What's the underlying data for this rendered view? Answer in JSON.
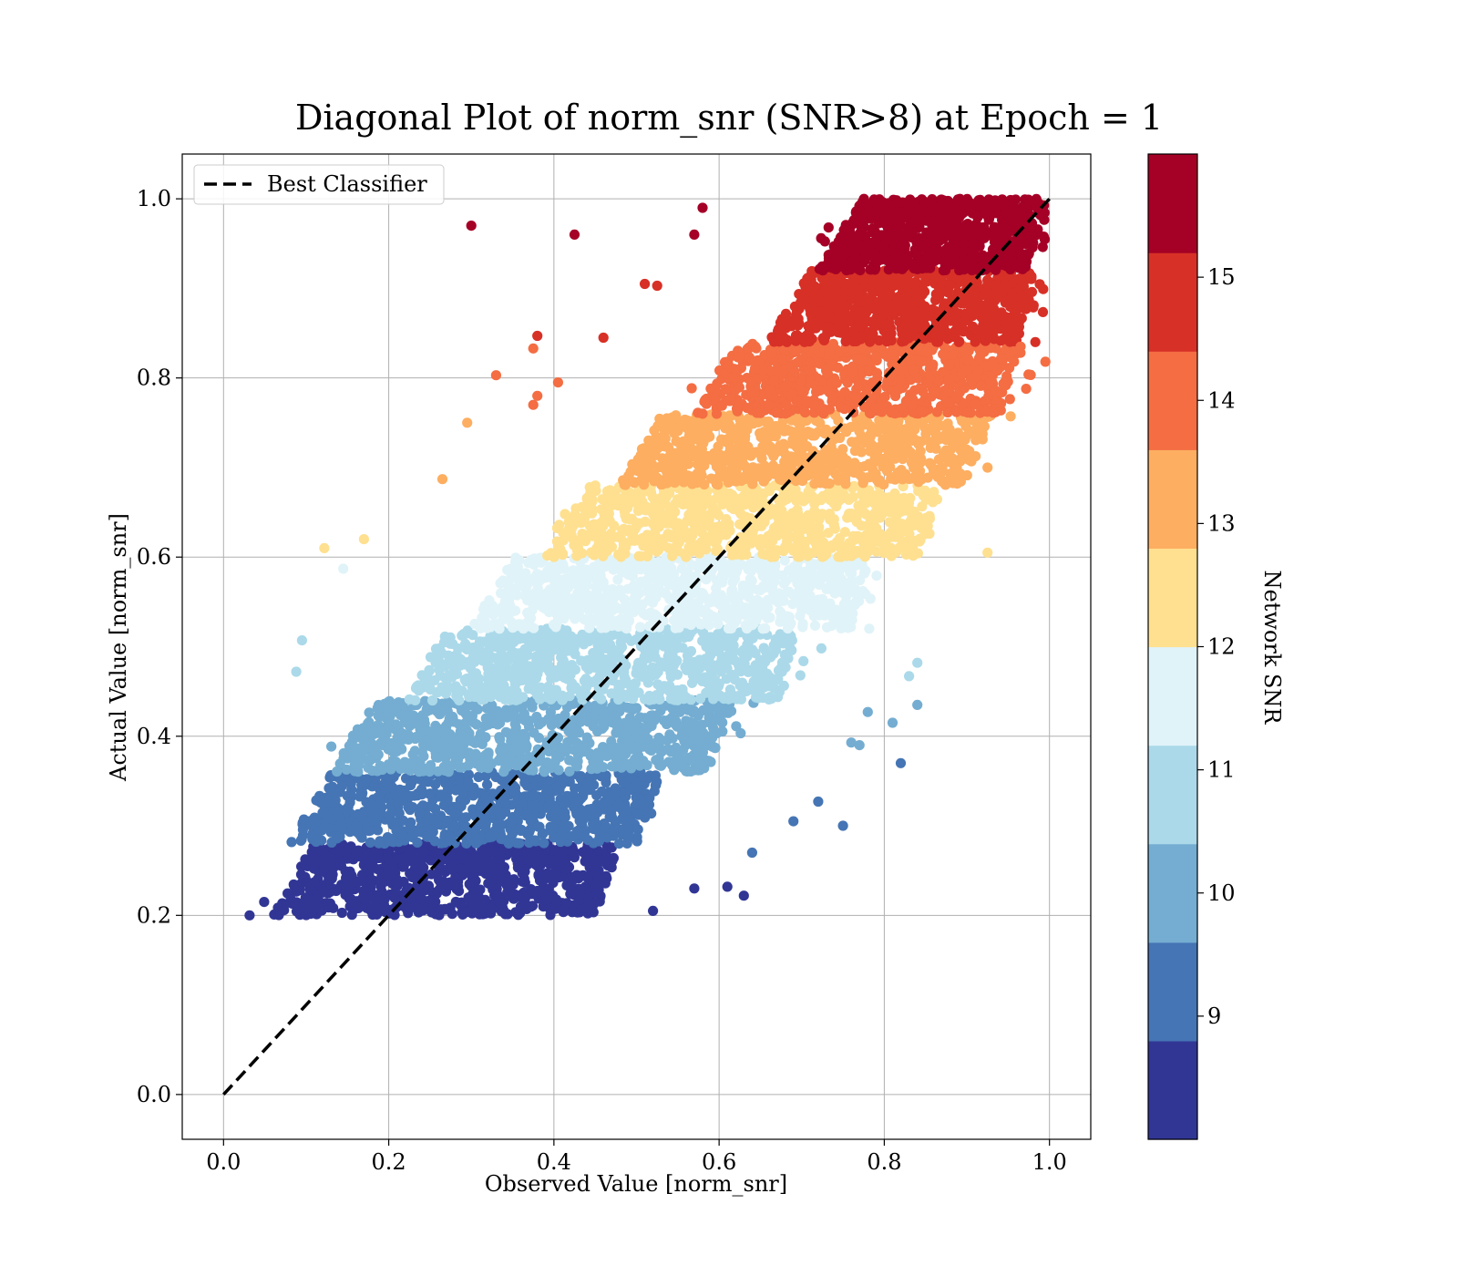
{
  "chart_data": {
    "type": "scatter",
    "title": "Diagonal Plot of norm_snr (SNR>8) at Epoch = 1",
    "xlabel": "Observed Value [norm_snr]",
    "ylabel": "Actual Value [norm_snr]",
    "xlim": [
      -0.05,
      1.05
    ],
    "ylim": [
      -0.05,
      1.05
    ],
    "xticks": [
      "0.0",
      "0.2",
      "0.4",
      "0.6",
      "0.8",
      "1.0"
    ],
    "yticks": [
      "0.0",
      "0.2",
      "0.4",
      "0.6",
      "0.8",
      "1.0"
    ],
    "grid": true,
    "legend": {
      "location": "upper-left",
      "entries": [
        {
          "label": "Best Classifier",
          "style": "dashed",
          "color": "#000000"
        }
      ]
    },
    "reference_line": {
      "name": "Best Classifier",
      "x": [
        0.0,
        1.0
      ],
      "y": [
        0.0,
        1.0
      ]
    },
    "colorbar": {
      "label": "Network SNR",
      "range": [
        8.0,
        16.0
      ],
      "tick_values": [
        9,
        10,
        11,
        12,
        13,
        14,
        15
      ],
      "tick_labels": [
        "9",
        "10",
        "11",
        "12",
        "13",
        "14",
        "15"
      ],
      "colors": [
        "#313695",
        "#4575b4",
        "#74add1",
        "#abd9e9",
        "#e0f3f8",
        "#fee090",
        "#fdae61",
        "#f46d43",
        "#d73027",
        "#a50026"
      ]
    },
    "bands": [
      {
        "snr_range": [
          8.0,
          8.8
        ],
        "y_range": [
          0.2,
          0.28
        ],
        "x_range": [
          0.06,
          0.45
        ],
        "color": "#313695"
      },
      {
        "snr_range": [
          8.8,
          9.6
        ],
        "y_range": [
          0.28,
          0.36
        ],
        "x_range": [
          0.08,
          0.5
        ],
        "color": "#4575b4"
      },
      {
        "snr_range": [
          9.6,
          10.4
        ],
        "y_range": [
          0.36,
          0.44
        ],
        "x_range": [
          0.13,
          0.59
        ],
        "color": "#74add1"
      },
      {
        "snr_range": [
          10.4,
          11.2
        ],
        "y_range": [
          0.44,
          0.52
        ],
        "x_range": [
          0.22,
          0.67
        ],
        "color": "#abd9e9"
      },
      {
        "snr_range": [
          11.2,
          12.0
        ],
        "y_range": [
          0.52,
          0.6
        ],
        "x_range": [
          0.3,
          0.76
        ],
        "color": "#e0f3f8"
      },
      {
        "snr_range": [
          12.0,
          12.8
        ],
        "y_range": [
          0.6,
          0.68
        ],
        "x_range": [
          0.39,
          0.84
        ],
        "color": "#fee090"
      },
      {
        "snr_range": [
          12.8,
          13.6
        ],
        "y_range": [
          0.68,
          0.76
        ],
        "x_range": [
          0.48,
          0.9
        ],
        "color": "#fdae61"
      },
      {
        "snr_range": [
          13.6,
          14.4
        ],
        "y_range": [
          0.76,
          0.84
        ],
        "x_range": [
          0.57,
          0.94
        ],
        "color": "#f46d43"
      },
      {
        "snr_range": [
          14.4,
          15.2
        ],
        "y_range": [
          0.84,
          0.92
        ],
        "x_range": [
          0.66,
          0.96
        ],
        "color": "#d73027"
      },
      {
        "snr_range": [
          15.2,
          16.0
        ],
        "y_range": [
          0.92,
          1.0
        ],
        "x_range": [
          0.72,
          0.97
        ],
        "color": "#a50026"
      }
    ],
    "outliers": [
      {
        "x": 0.3,
        "y": 0.97,
        "color": "#a50026"
      },
      {
        "x": 0.425,
        "y": 0.96,
        "color": "#a50026"
      },
      {
        "x": 0.58,
        "y": 0.99,
        "color": "#a50026"
      },
      {
        "x": 0.57,
        "y": 0.96,
        "color": "#a50026"
      },
      {
        "x": 0.51,
        "y": 0.905,
        "color": "#d73027"
      },
      {
        "x": 0.525,
        "y": 0.903,
        "color": "#d73027"
      },
      {
        "x": 0.38,
        "y": 0.847,
        "color": "#d73027"
      },
      {
        "x": 0.46,
        "y": 0.845,
        "color": "#d73027"
      },
      {
        "x": 0.965,
        "y": 0.835,
        "color": "#f46d43"
      },
      {
        "x": 0.33,
        "y": 0.803,
        "color": "#f46d43"
      },
      {
        "x": 0.375,
        "y": 0.833,
        "color": "#f46d43"
      },
      {
        "x": 0.38,
        "y": 0.78,
        "color": "#f46d43"
      },
      {
        "x": 0.405,
        "y": 0.795,
        "color": "#f46d43"
      },
      {
        "x": 0.375,
        "y": 0.77,
        "color": "#f46d43"
      },
      {
        "x": 0.295,
        "y": 0.75,
        "color": "#fdae61"
      },
      {
        "x": 0.265,
        "y": 0.687,
        "color": "#fdae61"
      },
      {
        "x": 0.925,
        "y": 0.7,
        "color": "#fdae61"
      },
      {
        "x": 0.925,
        "y": 0.605,
        "color": "#fee090"
      },
      {
        "x": 0.122,
        "y": 0.61,
        "color": "#fee090"
      },
      {
        "x": 0.17,
        "y": 0.62,
        "color": "#fee090"
      },
      {
        "x": 0.145,
        "y": 0.587,
        "color": "#e0f3f8"
      },
      {
        "x": 0.095,
        "y": 0.507,
        "color": "#abd9e9"
      },
      {
        "x": 0.088,
        "y": 0.472,
        "color": "#abd9e9"
      },
      {
        "x": 0.84,
        "y": 0.482,
        "color": "#abd9e9"
      },
      {
        "x": 0.83,
        "y": 0.467,
        "color": "#abd9e9"
      },
      {
        "x": 0.84,
        "y": 0.435,
        "color": "#74add1"
      },
      {
        "x": 0.81,
        "y": 0.415,
        "color": "#74add1"
      },
      {
        "x": 0.78,
        "y": 0.427,
        "color": "#74add1"
      },
      {
        "x": 0.76,
        "y": 0.393,
        "color": "#74add1"
      },
      {
        "x": 0.77,
        "y": 0.39,
        "color": "#74add1"
      },
      {
        "x": 0.82,
        "y": 0.37,
        "color": "#4575b4"
      },
      {
        "x": 0.75,
        "y": 0.3,
        "color": "#4575b4"
      },
      {
        "x": 0.72,
        "y": 0.327,
        "color": "#4575b4"
      },
      {
        "x": 0.69,
        "y": 0.305,
        "color": "#4575b4"
      },
      {
        "x": 0.64,
        "y": 0.27,
        "color": "#4575b4"
      },
      {
        "x": 0.63,
        "y": 0.222,
        "color": "#313695"
      },
      {
        "x": 0.61,
        "y": 0.232,
        "color": "#313695"
      },
      {
        "x": 0.57,
        "y": 0.23,
        "color": "#313695"
      },
      {
        "x": 0.52,
        "y": 0.205,
        "color": "#313695"
      }
    ]
  }
}
